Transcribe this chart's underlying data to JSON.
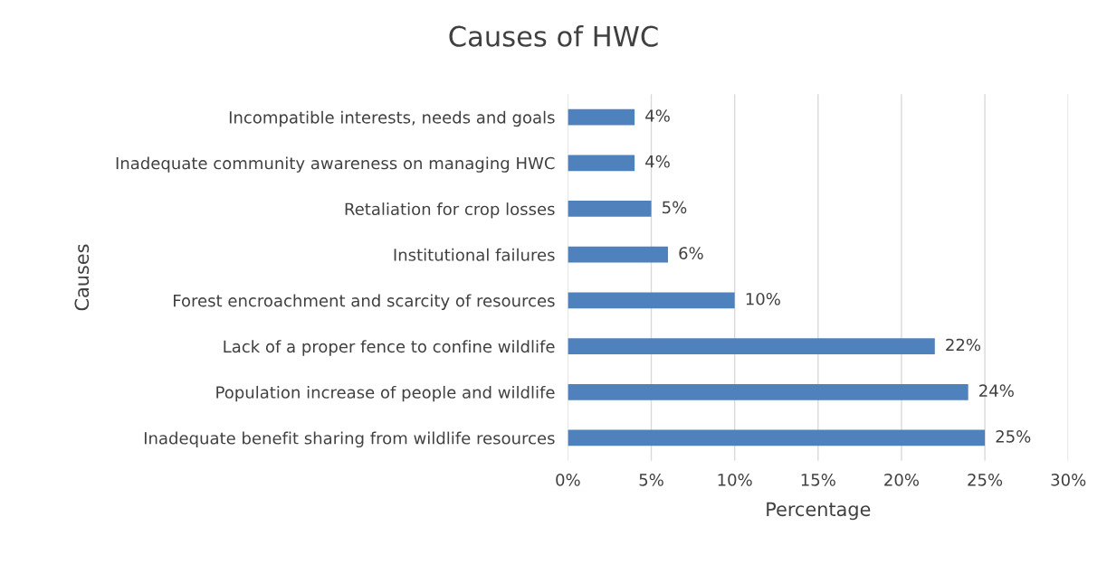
{
  "chart_data": {
    "type": "bar",
    "orientation": "horizontal",
    "title": "Causes of HWC",
    "xlabel": "Percentage",
    "ylabel": "Causes",
    "categories": [
      "Incompatible interests, needs and goals",
      "Inadequate community awareness on managing HWC",
      "Retaliation for crop losses",
      "Institutional failures",
      "Forest encroachment and scarcity of resources",
      "Lack of a proper fence to confine wildlife",
      "Population increase of people and wildlife",
      "Inadequate benefit sharing from wildlife resources"
    ],
    "values": [
      4,
      4,
      5,
      6,
      10,
      22,
      24,
      25
    ],
    "value_labels": [
      "4%",
      "4%",
      "5%",
      "6%",
      "10%",
      "22%",
      "24%",
      "25%"
    ],
    "color": "#4f81bd",
    "xlim": [
      0,
      30
    ],
    "xticks": [
      {
        "value": 0,
        "label": "0%"
      },
      {
        "value": 5,
        "label": "5%"
      },
      {
        "value": 10,
        "label": "10%"
      },
      {
        "value": 15,
        "label": "15%"
      },
      {
        "value": 20,
        "label": "20%"
      },
      {
        "value": 25,
        "label": "25%"
      },
      {
        "value": 30,
        "label": "30%"
      }
    ],
    "grid": "x",
    "legend": false
  }
}
